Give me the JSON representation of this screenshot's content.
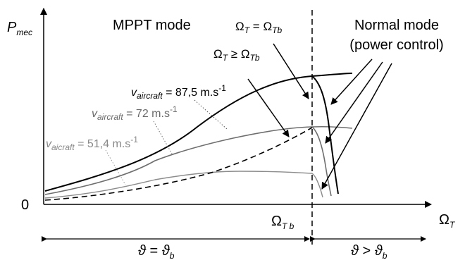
{
  "axes": {
    "y_symbol": "P",
    "y_sub": "mec",
    "x_symbol": "Ω",
    "x_sub": "T",
    "origin_label": "0",
    "split_symbol": "Ω",
    "split_sub": "T b"
  },
  "modes": {
    "left": "MPPT mode",
    "right_line1": "Normal mode",
    "right_line2": "(power control)"
  },
  "curves": {
    "high": {
      "prefix": "v",
      "sub": "aircraft",
      "value": " = 87,5 m.s",
      "exp": "-1"
    },
    "mid": {
      "prefix": "v",
      "sub": "aircraft",
      "value": " = 72 m.s",
      "exp": "-1"
    },
    "low": {
      "prefix": "v",
      "sub": "aicraft",
      "value": " = 51,4 m.s",
      "exp": "-1"
    }
  },
  "annotations": {
    "eq_lhs": "Ω",
    "eq_lhs_sub": "T",
    "eq_op": " = ",
    "eq_rhs": "Ω",
    "eq_rhs_sub": "Tb",
    "ge_lhs": "Ω",
    "ge_lhs_sub": "T",
    "ge_op": " ≥ ",
    "ge_rhs": "Ω",
    "ge_rhs_sub": "Tb"
  },
  "ranges": {
    "left_sym": "ϑ",
    "left_op": " = ",
    "left_rhs": "ϑ",
    "left_sub": "b",
    "right_sym": "ϑ",
    "right_op": " > ",
    "right_rhs": "ϑ",
    "right_sub": "b"
  },
  "colors": {
    "black": "#000000",
    "gray_mid": "#6e6e6e",
    "gray_light": "#8c8c8c",
    "gray_label_mid": "#6a6a6a",
    "gray_label_low": "#888888"
  }
}
